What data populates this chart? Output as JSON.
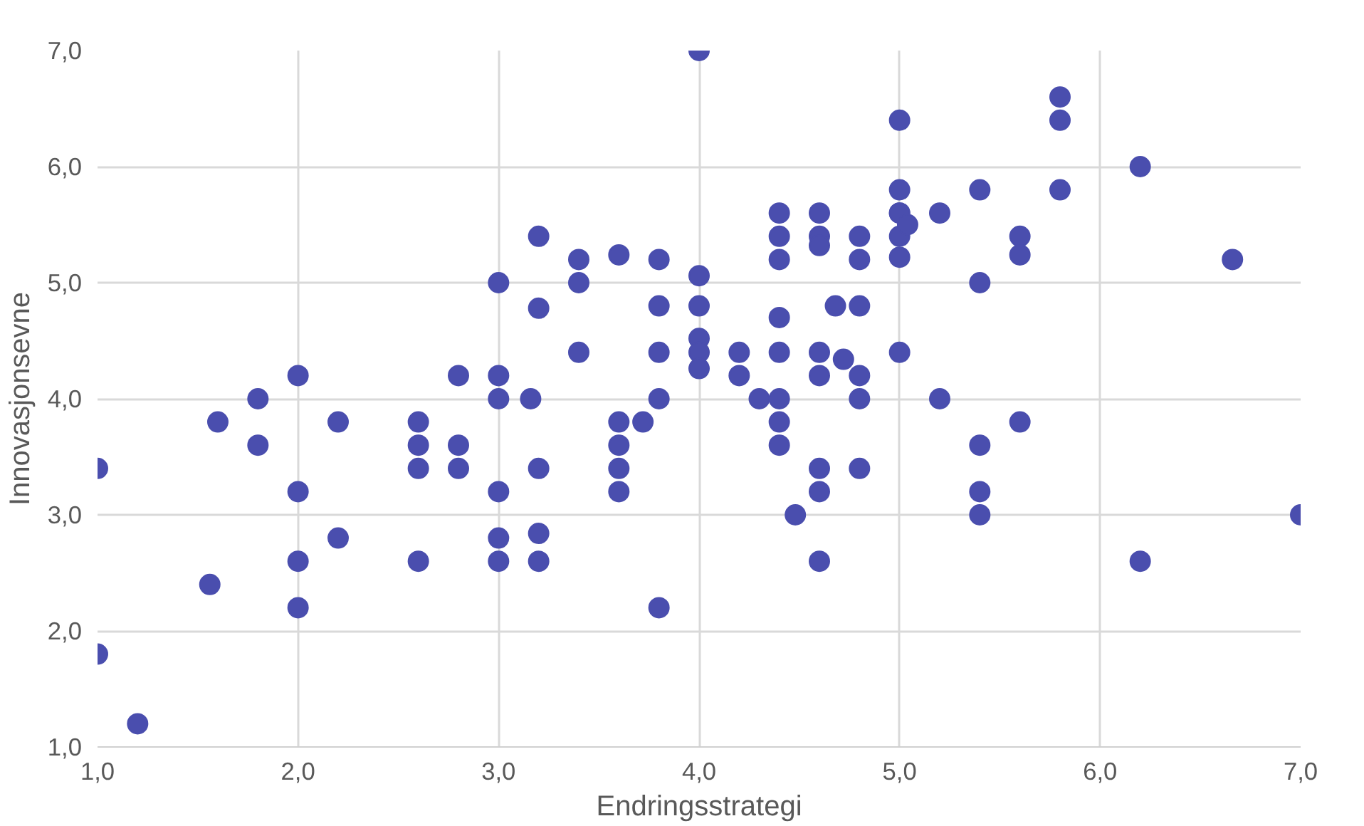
{
  "chart_data": {
    "type": "scatter",
    "xlabel": "Endringsstrategi",
    "ylabel": "Innovasjonsevne",
    "xlim": [
      1,
      7
    ],
    "ylim": [
      1,
      7
    ],
    "xticks": [
      {
        "value": 1,
        "label": "1,0"
      },
      {
        "value": 2,
        "label": "2,0"
      },
      {
        "value": 3,
        "label": "3,0"
      },
      {
        "value": 4,
        "label": "4,0"
      },
      {
        "value": 5,
        "label": "5,0"
      },
      {
        "value": 6,
        "label": "6,0"
      },
      {
        "value": 7,
        "label": "7,0"
      }
    ],
    "yticks": [
      {
        "value": 1,
        "label": "1,0"
      },
      {
        "value": 2,
        "label": "2,0"
      },
      {
        "value": 3,
        "label": "3,0"
      },
      {
        "value": 4,
        "label": "4,0"
      },
      {
        "value": 5,
        "label": "5,0"
      },
      {
        "value": 6,
        "label": "6,0"
      },
      {
        "value": 7,
        "label": "7,0"
      }
    ],
    "grid": true,
    "marker": "circle",
    "series": [
      {
        "color": "#4a4eae",
        "x": [
          1.0,
          1.0,
          1.2,
          1.56,
          1.6,
          1.8,
          1.8,
          2.0,
          2.0,
          2.0,
          2.0,
          2.2,
          2.2,
          2.6,
          2.6,
          2.6,
          2.6,
          2.8,
          2.8,
          2.8,
          3.0,
          3.0,
          3.0,
          3.0,
          3.0,
          3.0,
          3.16,
          3.2,
          3.2,
          3.2,
          3.2,
          3.2,
          3.4,
          3.4,
          3.4,
          3.6,
          3.6,
          3.6,
          3.6,
          3.6,
          3.72,
          3.8,
          3.8,
          3.8,
          3.8,
          3.8,
          4.0,
          4.0,
          4.0,
          4.0,
          4.0,
          4.0,
          4.2,
          4.2,
          4.3,
          4.4,
          4.4,
          4.4,
          4.4,
          4.4,
          4.4,
          4.4,
          4.4,
          4.48,
          4.6,
          4.6,
          4.6,
          4.6,
          4.6,
          4.6,
          4.6,
          4.6,
          4.68,
          4.72,
          4.8,
          4.8,
          4.8,
          4.8,
          4.8,
          4.8,
          5.0,
          5.0,
          5.0,
          5.0,
          5.0,
          5.0,
          5.0,
          5.04,
          5.2,
          5.2,
          5.4,
          5.4,
          5.4,
          5.4,
          5.4,
          5.6,
          5.6,
          5.6,
          5.8,
          5.8,
          5.8,
          6.2,
          6.2,
          6.66,
          7.0
        ],
        "values": [
          3.4,
          1.8,
          1.2,
          2.4,
          3.8,
          4.0,
          3.6,
          4.2,
          3.2,
          2.6,
          2.2,
          3.8,
          2.8,
          3.8,
          3.6,
          3.4,
          2.6,
          4.2,
          3.6,
          3.4,
          5.0,
          4.2,
          4.0,
          3.2,
          2.8,
          2.6,
          4.0,
          5.4,
          4.78,
          3.4,
          2.84,
          2.6,
          5.2,
          5.0,
          4.4,
          5.24,
          3.8,
          3.6,
          3.4,
          3.2,
          3.8,
          5.2,
          4.8,
          4.4,
          4.0,
          2.2,
          7.0,
          5.06,
          4.8,
          4.52,
          4.4,
          4.26,
          4.4,
          4.2,
          4.0,
          5.6,
          5.4,
          5.2,
          4.7,
          4.4,
          4.0,
          3.8,
          3.6,
          3.0,
          5.6,
          5.4,
          5.32,
          4.4,
          4.2,
          3.4,
          3.2,
          2.6,
          4.8,
          4.34,
          5.4,
          5.2,
          4.8,
          4.2,
          4.0,
          3.4,
          6.4,
          5.8,
          5.6,
          5.4,
          5.22,
          4.4,
          5.6,
          5.5,
          5.6,
          4.0,
          5.8,
          5.0,
          3.6,
          3.2,
          3.0,
          5.4,
          5.24,
          3.8,
          6.6,
          6.4,
          5.8,
          6.0,
          2.6,
          5.2,
          3.0
        ]
      }
    ]
  }
}
